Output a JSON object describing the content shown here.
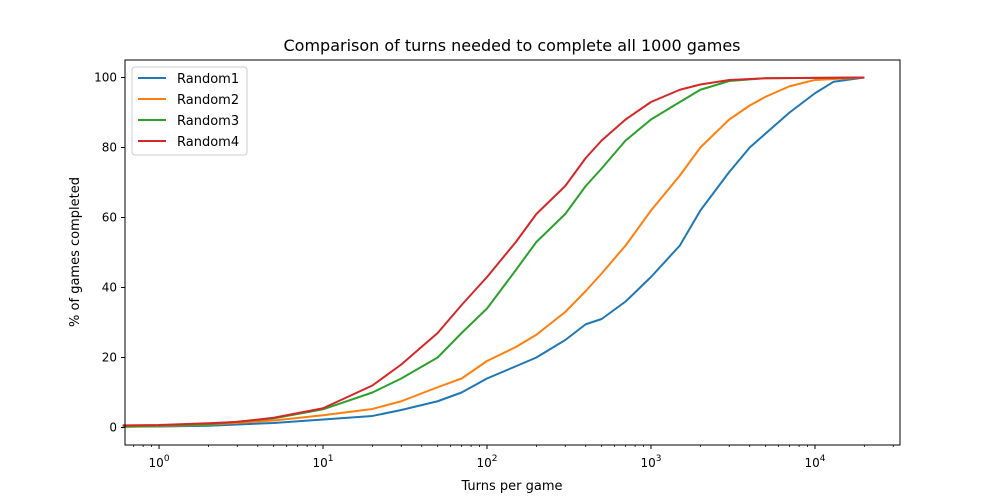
{
  "chart_data": {
    "type": "line",
    "title": "Comparison of turns needed to complete all 1000 games",
    "xlabel": "Turns per game",
    "ylabel": "% of games completed",
    "xscale": "log",
    "xlim": [
      0.62,
      33000
    ],
    "ylim": [
      -5,
      105
    ],
    "xticks": [
      {
        "value": 1,
        "base": "10",
        "exp": "0"
      },
      {
        "value": 10,
        "base": "10",
        "exp": "1"
      },
      {
        "value": 100,
        "base": "10",
        "exp": "2"
      },
      {
        "value": 1000,
        "base": "10",
        "exp": "3"
      },
      {
        "value": 10000,
        "base": "10",
        "exp": "4"
      }
    ],
    "yticks": [
      0,
      20,
      40,
      60,
      80,
      100
    ],
    "grid": false,
    "legend_position": "top-left",
    "series": [
      {
        "name": "Random1",
        "color": "#1f77b4",
        "points": [
          [
            0.6,
            0.2
          ],
          [
            1,
            0.3
          ],
          [
            2,
            0.5
          ],
          [
            5,
            1.3
          ],
          [
            10,
            2.3
          ],
          [
            20,
            3.3
          ],
          [
            30,
            5
          ],
          [
            50,
            7.5
          ],
          [
            70,
            10
          ],
          [
            100,
            14
          ],
          [
            150,
            17.5
          ],
          [
            200,
            20
          ],
          [
            300,
            25
          ],
          [
            400,
            29.5
          ],
          [
            500,
            31
          ],
          [
            700,
            36
          ],
          [
            1000,
            43
          ],
          [
            1500,
            52
          ],
          [
            2000,
            62
          ],
          [
            3000,
            73
          ],
          [
            4000,
            80
          ],
          [
            5000,
            84
          ],
          [
            7000,
            90
          ],
          [
            10000,
            95.5
          ],
          [
            13000,
            98.8
          ],
          [
            20000,
            100
          ]
        ]
      },
      {
        "name": "Random2",
        "color": "#ff7f0e",
        "points": [
          [
            0.6,
            0.2
          ],
          [
            1,
            0.4
          ],
          [
            2,
            0.8
          ],
          [
            5,
            2
          ],
          [
            10,
            3.5
          ],
          [
            20,
            5.3
          ],
          [
            30,
            7.5
          ],
          [
            50,
            11.5
          ],
          [
            70,
            14
          ],
          [
            100,
            19
          ],
          [
            150,
            23
          ],
          [
            200,
            26.5
          ],
          [
            300,
            33
          ],
          [
            400,
            39
          ],
          [
            500,
            44
          ],
          [
            700,
            52
          ],
          [
            1000,
            62
          ],
          [
            1500,
            72
          ],
          [
            2000,
            80
          ],
          [
            3000,
            88
          ],
          [
            4000,
            92
          ],
          [
            5000,
            94.5
          ],
          [
            7000,
            97.5
          ],
          [
            10000,
            99.3
          ],
          [
            20000,
            100
          ]
        ]
      },
      {
        "name": "Random3",
        "color": "#2ca02c",
        "points": [
          [
            0.6,
            0.3
          ],
          [
            1,
            0.5
          ],
          [
            2,
            0.9
          ],
          [
            5,
            2.6
          ],
          [
            10,
            5.2
          ],
          [
            20,
            10
          ],
          [
            30,
            14
          ],
          [
            50,
            20
          ],
          [
            70,
            27
          ],
          [
            100,
            34
          ],
          [
            150,
            45
          ],
          [
            200,
            53
          ],
          [
            300,
            61
          ],
          [
            400,
            69
          ],
          [
            500,
            74
          ],
          [
            700,
            82
          ],
          [
            1000,
            88
          ],
          [
            1500,
            93
          ],
          [
            2000,
            96.5
          ],
          [
            3000,
            99
          ],
          [
            5000,
            99.8
          ],
          [
            20000,
            100
          ]
        ]
      },
      {
        "name": "Random4",
        "color": "#d62728",
        "points": [
          [
            0.6,
            0.6
          ],
          [
            1,
            0.7
          ],
          [
            2,
            1.2
          ],
          [
            3,
            1.6
          ],
          [
            5,
            2.8
          ],
          [
            10,
            5.5
          ],
          [
            20,
            12
          ],
          [
            30,
            18
          ],
          [
            50,
            27
          ],
          [
            70,
            35
          ],
          [
            100,
            43
          ],
          [
            150,
            53
          ],
          [
            200,
            61
          ],
          [
            300,
            69
          ],
          [
            400,
            77
          ],
          [
            500,
            82
          ],
          [
            700,
            88
          ],
          [
            1000,
            93
          ],
          [
            1500,
            96.5
          ],
          [
            2000,
            98
          ],
          [
            3000,
            99.3
          ],
          [
            5000,
            99.8
          ],
          [
            20000,
            100
          ]
        ]
      }
    ]
  }
}
